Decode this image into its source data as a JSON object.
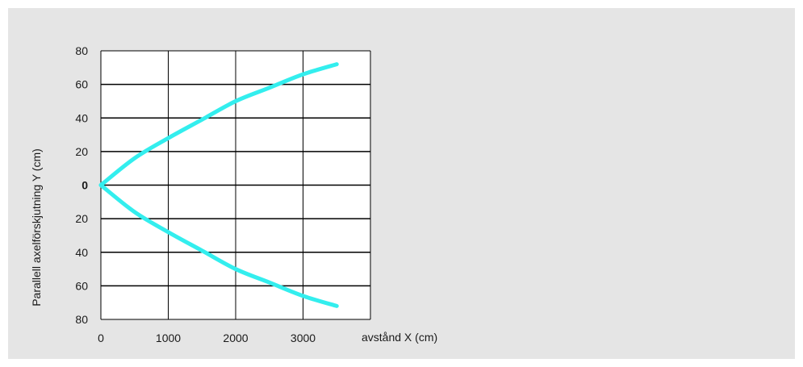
{
  "chart_data": {
    "type": "line",
    "xlabel": "avstånd X (cm)",
    "ylabel": "Parallell axelförskjutning Y (cm)",
    "xlim": [
      0,
      4000
    ],
    "ylim": [
      -80,
      80
    ],
    "x_ticks": [
      0,
      1000,
      2000,
      3000
    ],
    "x_tick_labels": [
      "0",
      "1000",
      "2000",
      "3000"
    ],
    "y_ticks": [
      80,
      60,
      40,
      20,
      0,
      -20,
      -40,
      -60,
      -80
    ],
    "y_tick_labels": [
      "80",
      "60",
      "40",
      "20",
      "0",
      "20",
      "40",
      "60",
      "80"
    ],
    "grid": true,
    "line_color": "#33eeee",
    "series": [
      {
        "x": [
          0,
          500,
          1000,
          1500,
          2000,
          2500,
          3000,
          3500
        ],
        "values": [
          0,
          16,
          28,
          39,
          50,
          58,
          66,
          72
        ]
      },
      {
        "x": [
          0,
          500,
          1000,
          1500,
          2000,
          2500,
          3000,
          3500
        ],
        "values": [
          0,
          -16,
          -28,
          -39,
          -50,
          -58,
          -66,
          -72
        ]
      }
    ]
  }
}
